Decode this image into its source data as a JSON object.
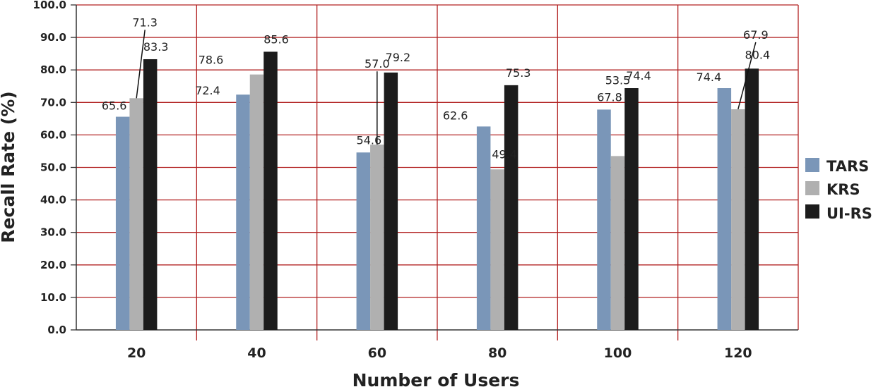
{
  "chart_data": {
    "type": "bar",
    "xlabel": "Number of Users",
    "ylabel": "Recall Rate (%)",
    "ylim": [
      0,
      100
    ],
    "yticks": [
      "0.0",
      "10.0",
      "20.0",
      "30.0",
      "40.0",
      "50.0",
      "60.0",
      "70.0",
      "80.0",
      "90.0",
      "100.0"
    ],
    "categories": [
      "20",
      "40",
      "60",
      "80",
      "100",
      "120"
    ],
    "grid": true,
    "legend_position": "right",
    "series": [
      {
        "name": "TARS",
        "color": "#7a96b8",
        "values": [
          65.6,
          72.4,
          54.6,
          62.6,
          67.8,
          74.4
        ],
        "labels": [
          "65.6",
          "72.4",
          "54.6",
          "62.6",
          "67.8",
          "74.4"
        ]
      },
      {
        "name": "KRS",
        "color": "#b0b0b0",
        "values": [
          71.3,
          78.6,
          57.0,
          49.4,
          53.5,
          67.9
        ],
        "labels": [
          "71.3",
          "78.6",
          "57.0",
          "49.4",
          "53.5",
          "67.9"
        ]
      },
      {
        "name": "UI-RS",
        "color": "#1c1c1c",
        "values": [
          83.3,
          85.6,
          79.2,
          75.3,
          74.4,
          80.4
        ],
        "labels": [
          "83.3",
          "85.6",
          "79.2",
          "75.3",
          "74.4",
          "80.4"
        ]
      }
    ],
    "grid_color": "#b22222",
    "axis_color": "#333333"
  }
}
